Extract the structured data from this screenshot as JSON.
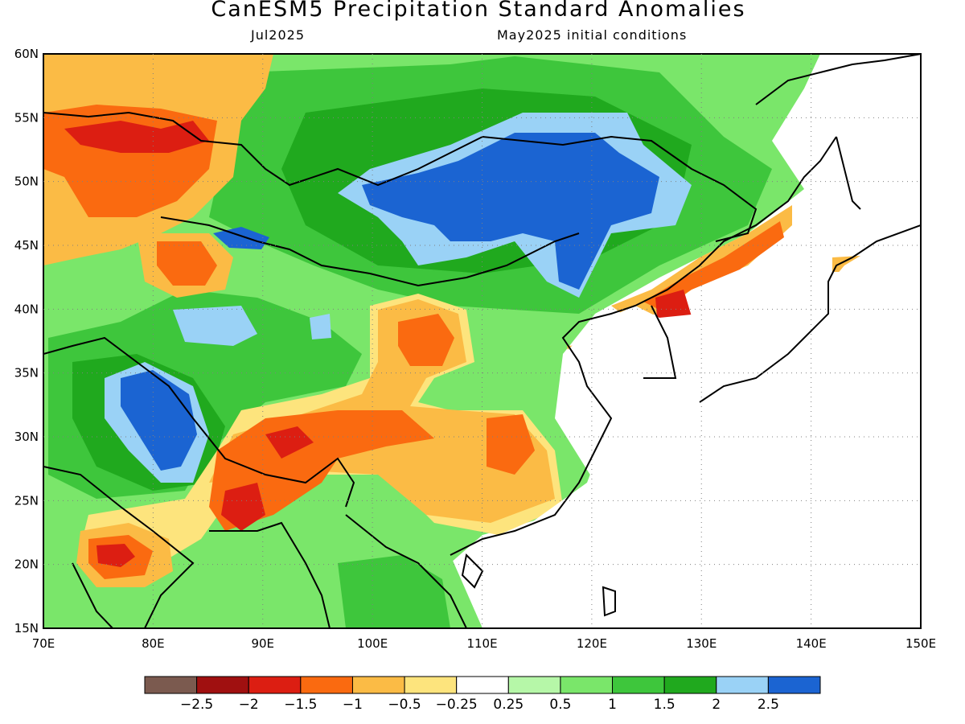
{
  "map": {
    "title": "CanESM5 Precipitation Standard Anomalies",
    "valid_month": "Jul2025",
    "initial_conditions": "May2025 initial conditions",
    "extent": {
      "lon_min": 70,
      "lon_max": 150,
      "lat_min": 15,
      "lat_max": 60
    },
    "lon_ticks": [
      "70E",
      "80E",
      "90E",
      "100E",
      "110E",
      "120E",
      "130E",
      "140E",
      "150E"
    ],
    "lat_ticks": [
      "15N",
      "20N",
      "25N",
      "30N",
      "35N",
      "40N",
      "45N",
      "50N",
      "55N",
      "60N"
    ]
  },
  "colorbar": {
    "colors": [
      "#7b5a4f",
      "#a01010",
      "#dc1e12",
      "#fa6a10",
      "#fbbb45",
      "#fde47d",
      "#ffffff",
      "#b6f7a8",
      "#7ae66a",
      "#3ec63c",
      "#20a91e",
      "#9ad2f6",
      "#1b64d2"
    ],
    "labels": [
      "−2.5",
      "−2",
      "−1.5",
      "−1",
      "−0.5",
      "−0.25",
      "0.25",
      "0.5",
      "1",
      "1.5",
      "2",
      "2.5"
    ]
  },
  "legend_colors": {
    "strong_dry": "#dc1e12",
    "dry": "#fa6a10",
    "moderate_dry": "#fbbb45",
    "slight_dry": "#fde47d",
    "slight_wet": "#b6f7a8",
    "wet": "#7ae66a",
    "moderate_wet": "#3ec63c",
    "strong_wet": "#20a91e",
    "very_wet": "#9ad2f6",
    "extreme_wet": "#1b64d2"
  }
}
